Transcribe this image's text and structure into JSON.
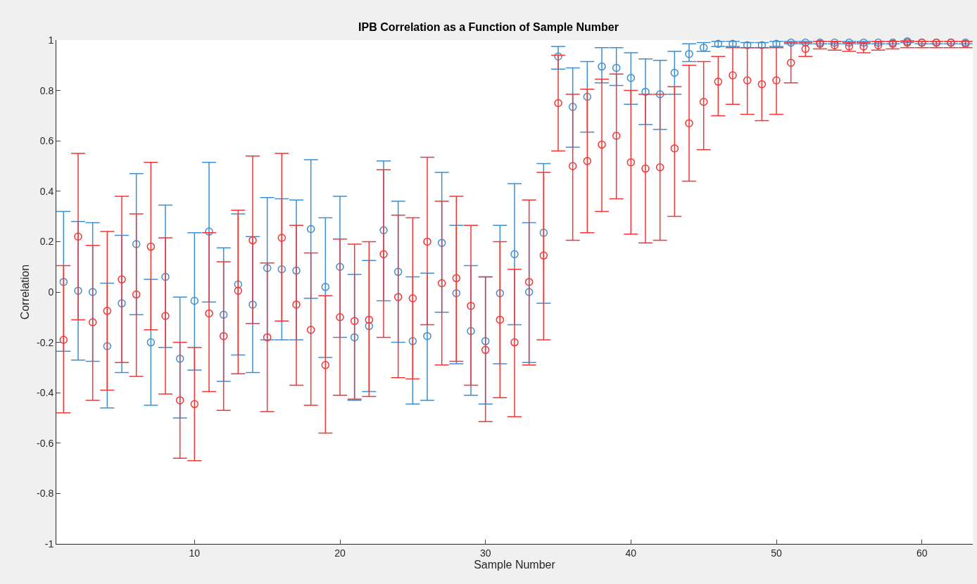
{
  "chart_data": {
    "type": "scatter",
    "title": "IPB Correlation as a Function of Sample Number",
    "xlabel": "Sample Number",
    "ylabel": "Correlation",
    "x": [
      1,
      2,
      3,
      4,
      5,
      6,
      7,
      8,
      9,
      10,
      11,
      12,
      13,
      14,
      15,
      16,
      17,
      18,
      19,
      20,
      21,
      22,
      23,
      24,
      25,
      26,
      27,
      28,
      29,
      30,
      31,
      32,
      33,
      34,
      35,
      36,
      37,
      38,
      39,
      40,
      41,
      42,
      43,
      44,
      45,
      46,
      47,
      48,
      49,
      50,
      51,
      52,
      53,
      54,
      55,
      56,
      57,
      58,
      59,
      60,
      61,
      62,
      63
    ],
    "xlim": [
      0.5,
      63.5
    ],
    "xticks": [
      10,
      20,
      30,
      40,
      50,
      60
    ],
    "ylim": [
      -1,
      1
    ],
    "yticks": [
      -1,
      -0.8,
      -0.6,
      -0.4,
      -0.2,
      0,
      0.2,
      0.4,
      0.6,
      0.8,
      1
    ],
    "marker": "circle",
    "series": [
      {
        "color": "#3d8fd1",
        "values": [
          0.04,
          0.005,
          0.0,
          -0.215,
          -0.045,
          0.19,
          -0.2,
          0.06,
          -0.265,
          -0.035,
          0.24,
          -0.09,
          0.03,
          -0.05,
          0.095,
          0.09,
          0.085,
          0.25,
          0.02,
          0.1,
          -0.18,
          -0.135,
          0.245,
          0.08,
          -0.195,
          -0.175,
          0.195,
          -0.005,
          -0.155,
          -0.195,
          -0.005,
          0.15,
          0.0,
          0.235,
          0.935,
          0.735,
          0.775,
          0.895,
          0.89,
          0.85,
          0.795,
          0.785,
          0.87,
          0.945,
          0.97,
          0.985,
          0.985,
          0.98,
          0.98,
          0.985,
          0.99,
          0.99,
          0.99,
          0.99,
          0.99,
          0.99,
          0.99,
          0.99,
          0.995,
          0.99,
          0.99,
          0.99,
          0.99
        ],
        "errors": [
          [
            -0.235,
            0.32
          ],
          [
            -0.27,
            0.28
          ],
          [
            -0.275,
            0.275
          ],
          [
            -0.46,
            0.035
          ],
          [
            -0.32,
            0.225
          ],
          [
            -0.09,
            0.47
          ],
          [
            -0.45,
            0.05
          ],
          [
            -0.22,
            0.345
          ],
          [
            -0.5,
            -0.02
          ],
          [
            -0.31,
            0.235
          ],
          [
            -0.04,
            0.515
          ],
          [
            -0.355,
            0.175
          ],
          [
            -0.25,
            0.31
          ],
          [
            -0.32,
            0.22
          ],
          [
            -0.19,
            0.375
          ],
          [
            -0.19,
            0.37
          ],
          [
            -0.19,
            0.365
          ],
          [
            -0.025,
            0.525
          ],
          [
            -0.26,
            0.295
          ],
          [
            -0.18,
            0.38
          ],
          [
            -0.43,
            0.07
          ],
          [
            -0.395,
            0.125
          ],
          [
            -0.035,
            0.52
          ],
          [
            -0.2,
            0.36
          ],
          [
            -0.445,
            0.06
          ],
          [
            -0.43,
            0.075
          ],
          [
            -0.08,
            0.475
          ],
          [
            -0.285,
            0.265
          ],
          [
            -0.41,
            0.105
          ],
          [
            -0.445,
            0.06
          ],
          [
            -0.285,
            0.265
          ],
          [
            -0.13,
            0.43
          ],
          [
            -0.28,
            0.275
          ],
          [
            -0.045,
            0.51
          ],
          [
            0.885,
            0.975
          ],
          [
            0.575,
            0.89
          ],
          [
            0.635,
            0.915
          ],
          [
            0.83,
            0.97
          ],
          [
            0.82,
            0.97
          ],
          [
            0.745,
            0.95
          ],
          [
            0.665,
            0.925
          ],
          [
            0.645,
            0.92
          ],
          [
            0.785,
            0.955
          ],
          [
            0.915,
            0.985
          ],
          [
            0.955,
            0.99
          ],
          [
            0.975,
            0.995
          ],
          [
            0.975,
            0.995
          ],
          [
            0.97,
            0.99
          ],
          [
            0.97,
            0.99
          ],
          [
            0.975,
            0.995
          ],
          [
            0.985,
            0.995
          ],
          [
            0.985,
            0.995
          ],
          [
            0.985,
            0.995
          ],
          [
            0.985,
            0.995
          ],
          [
            0.985,
            0.995
          ],
          [
            0.985,
            0.995
          ],
          [
            0.985,
            0.995
          ],
          [
            0.985,
            0.995
          ],
          [
            0.99,
            1.0
          ],
          [
            0.985,
            0.995
          ],
          [
            0.985,
            0.995
          ],
          [
            0.985,
            0.995
          ],
          [
            0.985,
            0.995
          ]
        ]
      },
      {
        "color": "#f23535",
        "values": [
          -0.19,
          0.22,
          -0.12,
          -0.075,
          0.05,
          -0.01,
          0.18,
          -0.095,
          -0.43,
          -0.445,
          -0.085,
          -0.175,
          0.005,
          0.205,
          -0.18,
          0.215,
          -0.05,
          -0.15,
          -0.29,
          -0.1,
          -0.115,
          -0.11,
          0.15,
          -0.02,
          -0.025,
          0.2,
          0.035,
          0.055,
          -0.055,
          -0.23,
          -0.11,
          -0.2,
          0.04,
          0.145,
          0.75,
          0.5,
          0.52,
          0.585,
          0.62,
          0.515,
          0.49,
          0.495,
          0.57,
          0.67,
          0.755,
          0.835,
          0.86,
          0.84,
          0.825,
          0.84,
          0.91,
          0.965,
          0.985,
          0.98,
          0.975,
          0.975,
          0.98,
          0.985,
          0.99,
          0.99,
          0.99,
          0.99,
          0.985
        ],
        "errors": [
          [
            -0.48,
            0.105
          ],
          [
            -0.11,
            0.55
          ],
          [
            -0.43,
            0.185
          ],
          [
            -0.39,
            0.24
          ],
          [
            -0.28,
            0.38
          ],
          [
            -0.335,
            0.31
          ],
          [
            -0.15,
            0.515
          ],
          [
            -0.405,
            0.215
          ],
          [
            -0.66,
            -0.2
          ],
          [
            -0.67,
            -0.22
          ],
          [
            -0.395,
            0.235
          ],
          [
            -0.47,
            0.12
          ],
          [
            -0.325,
            0.325
          ],
          [
            -0.125,
            0.54
          ],
          [
            -0.475,
            0.115
          ],
          [
            -0.115,
            0.55
          ],
          [
            -0.37,
            0.265
          ],
          [
            -0.45,
            0.155
          ],
          [
            -0.56,
            -0.015
          ],
          [
            -0.41,
            0.21
          ],
          [
            -0.425,
            0.19
          ],
          [
            -0.415,
            0.2
          ],
          [
            -0.18,
            0.485
          ],
          [
            -0.34,
            0.305
          ],
          [
            -0.345,
            0.295
          ],
          [
            -0.13,
            0.535
          ],
          [
            -0.29,
            0.36
          ],
          [
            -0.275,
            0.38
          ],
          [
            -0.37,
            0.265
          ],
          [
            -0.515,
            0.06
          ],
          [
            -0.42,
            0.2
          ],
          [
            -0.495,
            0.09
          ],
          [
            -0.29,
            0.365
          ],
          [
            -0.19,
            0.475
          ],
          [
            0.56,
            0.94
          ],
          [
            0.205,
            0.785
          ],
          [
            0.235,
            0.805
          ],
          [
            0.32,
            0.845
          ],
          [
            0.37,
            0.865
          ],
          [
            0.23,
            0.8
          ],
          [
            0.195,
            0.785
          ],
          [
            0.205,
            0.785
          ],
          [
            0.3,
            0.815
          ],
          [
            0.44,
            0.9
          ],
          [
            0.565,
            0.915
          ],
          [
            0.7,
            0.935
          ],
          [
            0.745,
            0.97
          ],
          [
            0.705,
            0.97
          ],
          [
            0.68,
            0.97
          ],
          [
            0.705,
            0.97
          ],
          [
            0.83,
            0.99
          ],
          [
            0.935,
            0.99
          ],
          [
            0.965,
            0.995
          ],
          [
            0.96,
            0.995
          ],
          [
            0.955,
            0.99
          ],
          [
            0.95,
            0.99
          ],
          [
            0.96,
            0.995
          ],
          [
            0.965,
            0.995
          ],
          [
            0.97,
            0.995
          ],
          [
            0.97,
            0.995
          ],
          [
            0.97,
            0.995
          ],
          [
            0.97,
            0.995
          ],
          [
            0.97,
            0.995
          ]
        ]
      }
    ]
  }
}
